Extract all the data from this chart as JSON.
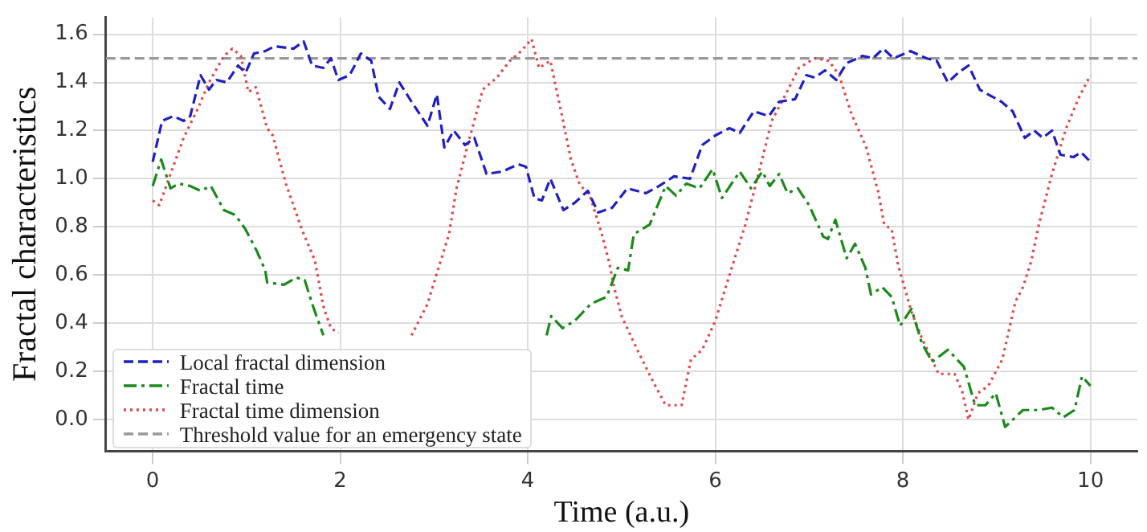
{
  "chart_data": {
    "type": "line",
    "xlabel": "Time (a.u.)",
    "ylabel": "Fractal characteristics",
    "xlim": [
      -0.5,
      10.5
    ],
    "ylim": [
      -0.13,
      1.67
    ],
    "xticks": [
      0,
      2,
      4,
      6,
      8,
      10
    ],
    "yticks": [
      {
        "value": 0,
        "label": "0.0"
      },
      {
        "value": 0.2,
        "label": "0.2"
      },
      {
        "value": 0.4,
        "label": "0.4"
      },
      {
        "value": 0.6,
        "label": "0.6"
      },
      {
        "value": 0.8,
        "label": "0.8"
      },
      {
        "value": 1,
        "label": "1.0"
      },
      {
        "value": 1.2,
        "label": "1.2"
      },
      {
        "value": 1.4,
        "label": "1.4"
      },
      {
        "value": 1.6,
        "label": "1.6"
      }
    ],
    "grid": true,
    "legend": "bottom left",
    "marker": "none",
    "series": [
      {
        "name": "Local fractal dimension",
        "color": "#2020c0",
        "line_style": "dashed",
        "x": [
          0,
          0.1,
          0.22,
          0.33,
          0.4,
          0.51,
          0.6,
          0.68,
          0.79,
          0.91,
          0.99,
          1.08,
          1.2,
          1.3,
          1.5,
          1.61,
          1.7,
          1.82,
          1.9,
          1.98,
          2.1,
          2.22,
          2.33,
          2.41,
          2.53,
          2.63,
          2.76,
          2.93,
          3.03,
          3.11,
          3.21,
          3.33,
          3.43,
          3.56,
          3.73,
          3.9,
          3.98,
          4.07,
          4.15,
          4.24,
          4.38,
          4.5,
          4.64,
          4.75,
          4.9,
          5.06,
          5.26,
          5.4,
          5.56,
          5.73,
          5.86,
          6.0,
          6.15,
          6.26,
          6.41,
          6.57,
          6.68,
          6.85,
          6.97,
          7.06,
          7.17,
          7.29,
          7.4,
          7.57,
          7.68,
          7.79,
          7.9,
          8.08,
          8.25,
          8.36,
          8.48,
          8.59,
          8.7,
          8.82,
          8.91,
          9.05,
          9.17,
          9.3,
          9.4,
          9.49,
          9.59,
          9.68,
          9.82,
          9.9,
          10
        ],
        "values": [
          1.07,
          1.24,
          1.26,
          1.24,
          1.26,
          1.43,
          1.37,
          1.41,
          1.4,
          1.47,
          1.44,
          1.52,
          1.53,
          1.55,
          1.54,
          1.57,
          1.47,
          1.46,
          1.5,
          1.41,
          1.43,
          1.52,
          1.49,
          1.34,
          1.29,
          1.4,
          1.32,
          1.22,
          1.35,
          1.13,
          1.2,
          1.14,
          1.17,
          1.02,
          1.03,
          1.06,
          1.05,
          0.92,
          0.91,
          1.0,
          0.87,
          0.9,
          0.95,
          0.86,
          0.88,
          0.96,
          0.94,
          0.97,
          1.01,
          1.0,
          1.14,
          1.18,
          1.21,
          1.19,
          1.28,
          1.26,
          1.32,
          1.33,
          1.43,
          1.42,
          1.45,
          1.41,
          1.48,
          1.51,
          1.5,
          1.54,
          1.5,
          1.53,
          1.5,
          1.49,
          1.4,
          1.44,
          1.47,
          1.37,
          1.35,
          1.32,
          1.28,
          1.17,
          1.2,
          1.17,
          1.2,
          1.1,
          1.09,
          1.11,
          1.07
        ]
      },
      {
        "name": "Fractal time",
        "color": "#1a8a1a",
        "line_style": "dashdot",
        "x": [
          0,
          0.09,
          0.19,
          0.28,
          0.4,
          0.51,
          0.62,
          0.76,
          0.88,
          0.99,
          1.11,
          1.2,
          1.22,
          1.4,
          1.53,
          1.62,
          1.71,
          1.82,
          3.0,
          4.2,
          4.25,
          4.37,
          4.5,
          4.67,
          4.84,
          4.96,
          5.07,
          5.13,
          5.3,
          5.47,
          5.58,
          5.69,
          5.83,
          5.97,
          6.07,
          6.26,
          6.38,
          6.5,
          6.58,
          6.68,
          6.77,
          6.88,
          7.0,
          7.15,
          7.2,
          7.28,
          7.4,
          7.49,
          7.6,
          7.66,
          7.78,
          7.88,
          7.97,
          8.09,
          8.2,
          8.31,
          8.48,
          8.65,
          8.77,
          8.88,
          8.99,
          9.09,
          9.28,
          9.45,
          9.59,
          9.71,
          9.83,
          9.91,
          10
        ],
        "values": [
          0.97,
          1.08,
          0.96,
          0.98,
          0.97,
          0.95,
          0.97,
          0.87,
          0.85,
          0.79,
          0.7,
          0.62,
          0.57,
          0.56,
          0.59,
          0.58,
          0.47,
          0.35,
          null,
          0.35,
          0.43,
          0.38,
          0.41,
          0.48,
          0.51,
          0.63,
          0.62,
          0.77,
          0.81,
          0.97,
          0.93,
          0.98,
          0.96,
          1.04,
          0.92,
          1.03,
          0.96,
          1.03,
          0.97,
          1.02,
          0.94,
          0.96,
          0.89,
          0.76,
          0.75,
          0.83,
          0.67,
          0.73,
          0.63,
          0.52,
          0.55,
          0.51,
          0.39,
          0.46,
          0.32,
          0.24,
          0.29,
          0.22,
          0.06,
          0.06,
          0.11,
          -0.03,
          0.04,
          0.04,
          0.05,
          0.01,
          0.04,
          0.18,
          0.14
        ]
      },
      {
        "name": "Fractal time dimension",
        "color": "#e04848",
        "line_style": "dotted",
        "x": [
          0,
          0.07,
          0.19,
          0.33,
          0.48,
          0.6,
          0.76,
          0.85,
          0.94,
          1.02,
          1.1,
          1.22,
          1.28,
          1.42,
          1.59,
          1.73,
          1.82,
          1.9,
          1.98,
          2.4,
          2.76,
          2.93,
          3.04,
          3.16,
          3.24,
          3.38,
          3.52,
          3.67,
          3.81,
          3.93,
          4.04,
          4.12,
          4.24,
          4.36,
          4.46,
          4.55,
          4.67,
          4.79,
          4.87,
          4.92,
          5.0,
          5.18,
          5.32,
          5.47,
          5.64,
          5.74,
          5.86,
          6.0,
          6.15,
          6.32,
          6.46,
          6.6,
          6.75,
          6.89,
          7.06,
          7.21,
          7.32,
          7.45,
          7.61,
          7.74,
          7.8,
          7.88,
          7.95,
          8.09,
          8.2,
          8.38,
          8.55,
          8.63,
          8.7,
          8.8,
          8.91,
          9.06,
          9.2,
          9.28,
          9.37,
          9.45,
          9.59,
          9.74,
          9.88,
          10
        ],
        "values": [
          0.91,
          0.89,
          1.02,
          1.17,
          1.29,
          1.4,
          1.51,
          1.54,
          1.51,
          1.36,
          1.38,
          1.21,
          1.18,
          0.98,
          0.79,
          0.66,
          0.47,
          0.38,
          0.36,
          null,
          0.35,
          0.48,
          0.62,
          0.77,
          0.96,
          1.17,
          1.37,
          1.42,
          1.49,
          1.53,
          1.58,
          1.46,
          1.49,
          1.27,
          1.08,
          0.98,
          0.92,
          0.77,
          0.65,
          0.55,
          0.43,
          0.28,
          0.17,
          0.06,
          0.06,
          0.25,
          0.29,
          0.41,
          0.6,
          0.81,
          1.02,
          1.24,
          1.35,
          1.46,
          1.5,
          1.49,
          1.43,
          1.27,
          1.13,
          0.94,
          0.81,
          0.79,
          0.64,
          0.45,
          0.34,
          0.19,
          0.19,
          0.12,
          0.0,
          0.11,
          0.14,
          0.25,
          0.49,
          0.55,
          0.66,
          0.81,
          1.02,
          1.21,
          1.34,
          1.43
        ]
      }
    ],
    "ref_lines": [
      {
        "axis": "y",
        "value": 1.5,
        "label": "Threshold value for an emergency state",
        "color": "#999999",
        "line_style": "dashed"
      }
    ]
  }
}
